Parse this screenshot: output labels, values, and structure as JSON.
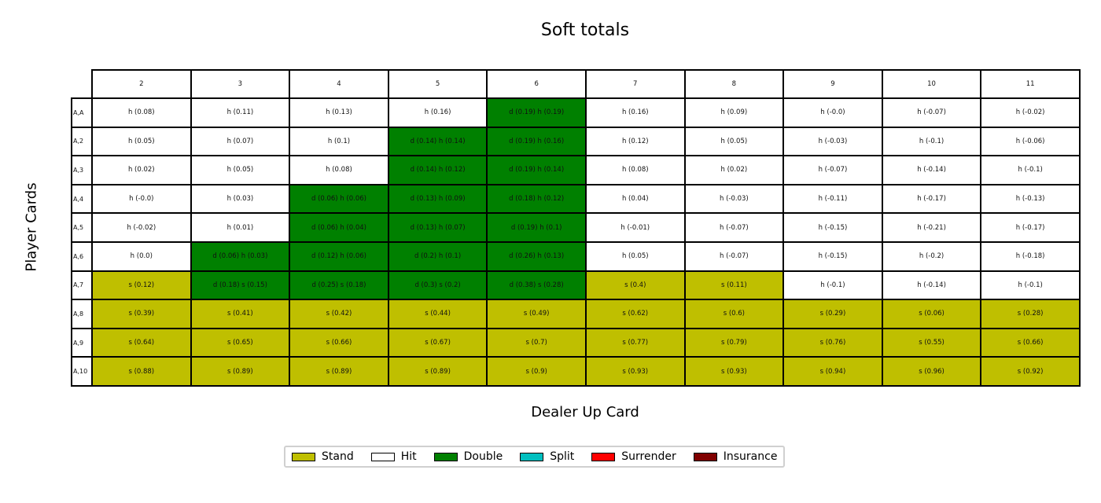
{
  "chart_data": {
    "type": "table",
    "title": "Soft totals",
    "xlabel": "Dealer Up Card",
    "ylabel": "Player Cards",
    "columns": [
      "2",
      "3",
      "4",
      "5",
      "6",
      "7",
      "8",
      "9",
      "10",
      "11"
    ],
    "rows": [
      "A,A",
      "A,2",
      "A,3",
      "A,4",
      "A,5",
      "A,6",
      "A,7",
      "A,8",
      "A,9",
      "A,10"
    ],
    "cells": [
      [
        "h (0.08)",
        "h (0.11)",
        "h (0.13)",
        "h (0.16)",
        "d (0.19) h (0.19)",
        "h (0.16)",
        "h (0.09)",
        "h (-0.0)",
        "h (-0.07)",
        "h (-0.02)"
      ],
      [
        "h (0.05)",
        "h (0.07)",
        "h (0.1)",
        "d (0.14) h (0.14)",
        "d (0.19) h (0.16)",
        "h (0.12)",
        "h (0.05)",
        "h (-0.03)",
        "h (-0.1)",
        "h (-0.06)"
      ],
      [
        "h (0.02)",
        "h (0.05)",
        "h (0.08)",
        "d (0.14) h (0.12)",
        "d (0.19) h (0.14)",
        "h (0.08)",
        "h (0.02)",
        "h (-0.07)",
        "h (-0.14)",
        "h (-0.1)"
      ],
      [
        "h (-0.0)",
        "h (0.03)",
        "d (0.06) h (0.06)",
        "d (0.13) h (0.09)",
        "d (0.18) h (0.12)",
        "h (0.04)",
        "h (-0.03)",
        "h (-0.11)",
        "h (-0.17)",
        "h (-0.13)"
      ],
      [
        "h (-0.02)",
        "h (0.01)",
        "d (0.06) h (0.04)",
        "d (0.13) h (0.07)",
        "d (0.19) h (0.1)",
        "h (-0.01)",
        "h (-0.07)",
        "h (-0.15)",
        "h (-0.21)",
        "h (-0.17)"
      ],
      [
        "h (0.0)",
        "d (0.06) h (0.03)",
        "d (0.12) h (0.06)",
        "d (0.2) h (0.1)",
        "d (0.26) h (0.13)",
        "h (0.05)",
        "h (-0.07)",
        "h (-0.15)",
        "h (-0.2)",
        "h (-0.18)"
      ],
      [
        "s (0.12)",
        "d (0.18) s (0.15)",
        "d (0.25) s (0.18)",
        "d (0.3) s (0.2)",
        "d (0.38) s (0.28)",
        "s (0.4)",
        "s (0.11)",
        "h (-0.1)",
        "h (-0.14)",
        "h (-0.1)"
      ],
      [
        "s (0.39)",
        "s (0.41)",
        "s (0.42)",
        "s (0.44)",
        "s (0.49)",
        "s (0.62)",
        "s (0.6)",
        "s (0.29)",
        "s (0.06)",
        "s (0.28)"
      ],
      [
        "s (0.64)",
        "s (0.65)",
        "s (0.66)",
        "s (0.67)",
        "s (0.7)",
        "s (0.77)",
        "s (0.79)",
        "s (0.76)",
        "s (0.55)",
        "s (0.66)"
      ],
      [
        "s (0.88)",
        "s (0.89)",
        "s (0.89)",
        "s (0.89)",
        "s (0.9)",
        "s (0.93)",
        "s (0.93)",
        "s (0.94)",
        "s (0.96)",
        "s (0.92)"
      ]
    ],
    "action_colors": {
      "s": "#bfbf00",
      "h": "#ffffff",
      "d": "#008000",
      "p": "#00bfbf",
      "r": "#ff0000",
      "i": "#800000"
    },
    "legend": [
      {
        "label": "Stand",
        "color": "#bfbf00"
      },
      {
        "label": "Hit",
        "color": "#ffffff"
      },
      {
        "label": "Double",
        "color": "#008000"
      },
      {
        "label": "Split",
        "color": "#00bfbf"
      },
      {
        "label": "Surrender",
        "color": "#ff0000"
      },
      {
        "label": "Insurance",
        "color": "#800000"
      }
    ],
    "legend_position": "bottom-center"
  }
}
